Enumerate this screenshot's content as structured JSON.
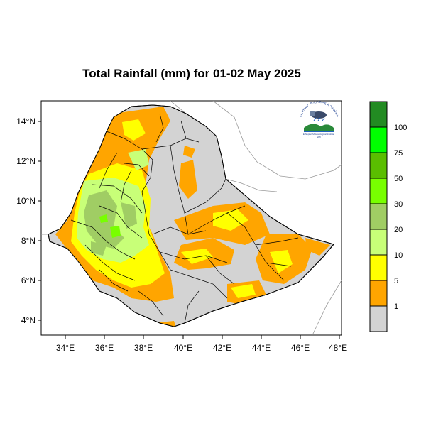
{
  "map": {
    "title": "Total Rainfall (mm) for 01-02 May 2025",
    "x_ticks": [
      "34°E",
      "36°E",
      "38°E",
      "40°E",
      "42°E",
      "44°E",
      "46°E",
      "48°E"
    ],
    "y_ticks": [
      "14°N",
      "12°N",
      "10°N",
      "8°N",
      "6°N",
      "4°N"
    ],
    "lon_range": [
      33,
      48.2
    ],
    "lat_range": [
      3.2,
      15.1
    ]
  },
  "legend": {
    "labels": [
      "1",
      "5",
      "10",
      "20",
      "30",
      "50",
      "75",
      "100"
    ],
    "colors": [
      "#d3d3d3",
      "#ffa500",
      "#ffff00",
      "#c8ff78",
      "#a0cd64",
      "#78ff00",
      "#5abe00",
      "#00ff00",
      "#228b22"
    ]
  },
  "colors": {
    "country_fill": "#d3d3d3",
    "orange": "#ffa500",
    "yellow": "#ffff00",
    "light_green": "#c8ff78",
    "olive_green": "#a0cd64",
    "green": "#78c84a"
  },
  "logo": {
    "arc_text": "የኢትዮጵያ ሚቲዎሮሎጂ ኢንስቲትዩት",
    "caption": "Ethiopian Meteorological Institute",
    "sub": "EMI"
  }
}
